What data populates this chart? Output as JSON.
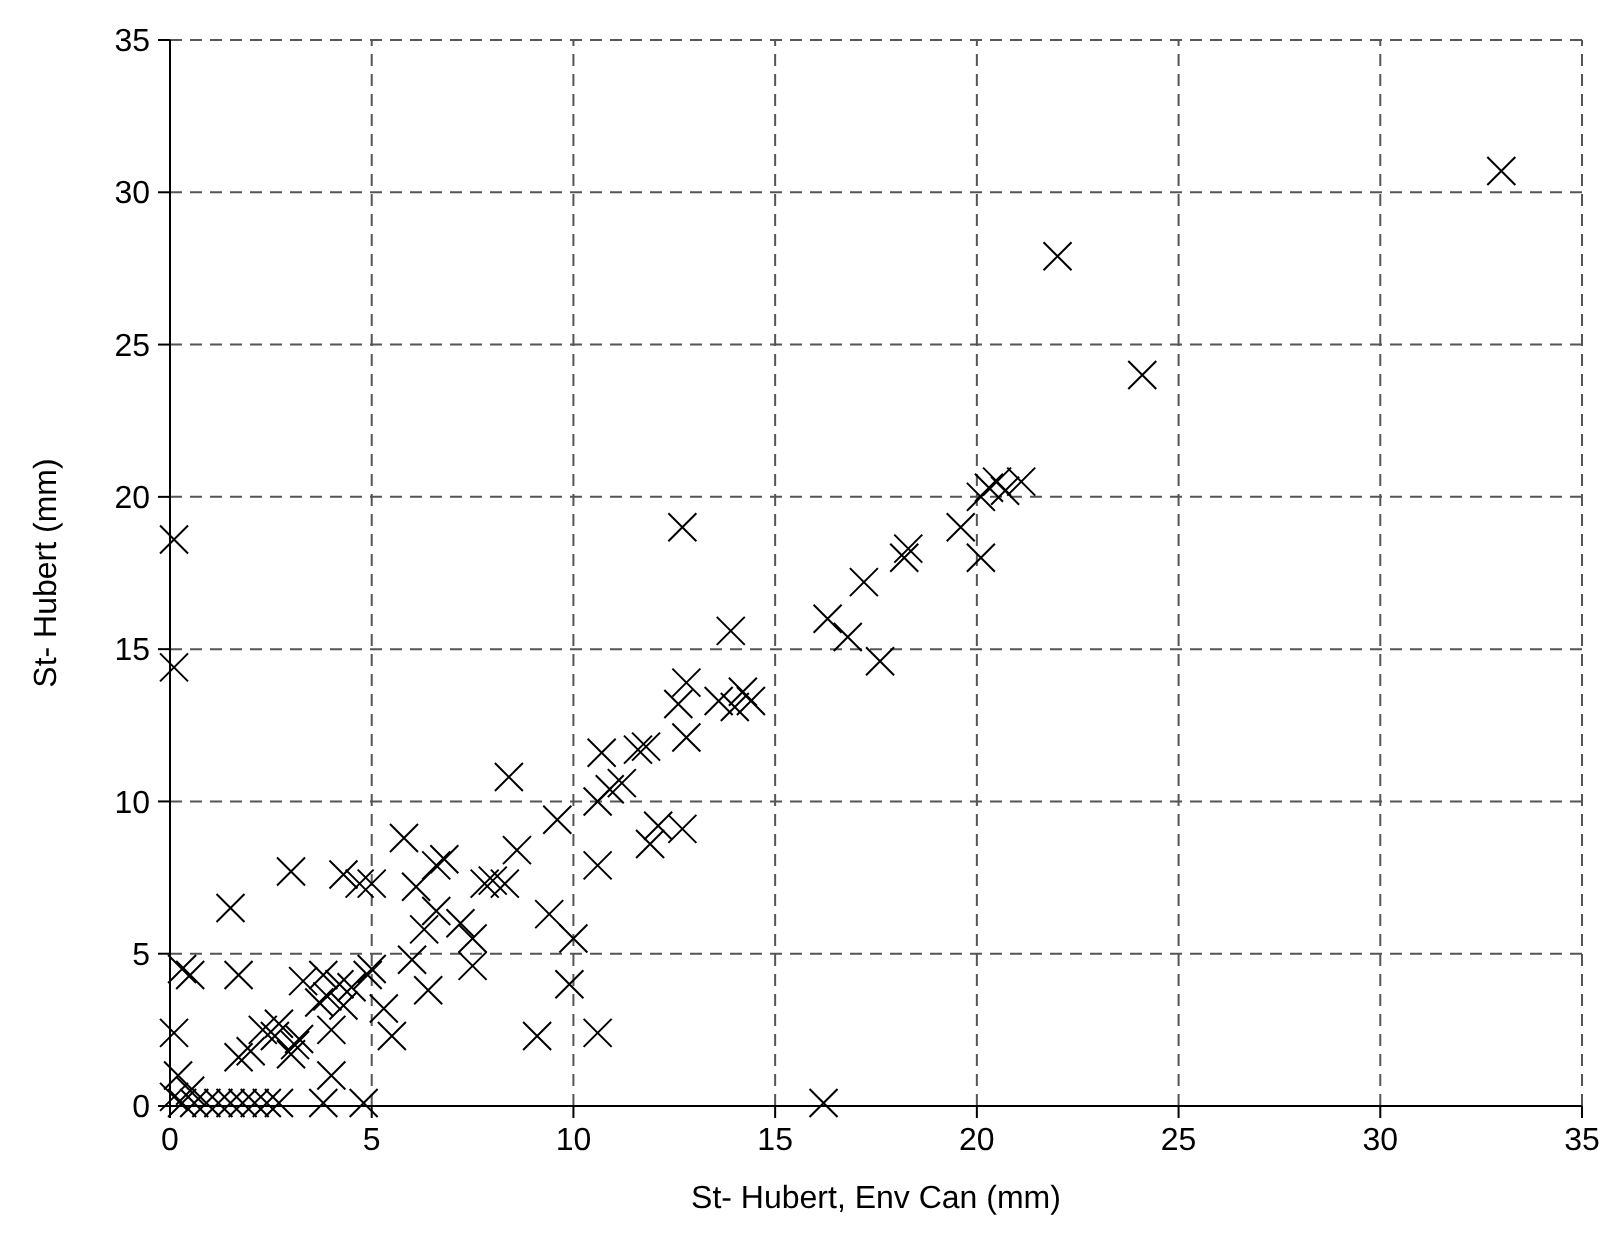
{
  "chart_data": {
    "type": "scatter",
    "xlabel": "St- Hubert, Env Can (mm)",
    "ylabel": "St- Hubert (mm)",
    "xlim": [
      0,
      35
    ],
    "ylim": [
      0,
      35
    ],
    "xticks": [
      0,
      5,
      10,
      15,
      20,
      25,
      30,
      35
    ],
    "yticks": [
      0,
      5,
      10,
      15,
      20,
      25,
      30,
      35
    ],
    "grid": true,
    "marker": "cross",
    "series": [
      {
        "color": "#000000",
        "x": [
          33.0,
          22.0,
          24.1,
          20.3,
          20.5,
          21.1,
          20.1,
          20.7,
          19.6,
          20.1,
          18.3,
          18.2,
          17.2,
          16.3,
          16.8,
          17.6,
          12.7,
          13.9,
          14.4,
          14.2,
          14.0,
          13.6,
          12.8,
          12.6,
          12.8,
          12.7,
          11.8,
          11.6,
          11.9,
          12.1,
          11.2,
          10.6,
          10.9,
          10.7,
          10.6,
          9.6,
          10.0,
          9.9,
          10.6,
          9.1,
          9.4,
          8.4,
          8.3,
          8.6,
          8.0,
          7.8,
          7.2,
          7.5,
          7.5,
          6.8,
          6.6,
          5.8,
          6.1,
          6.6,
          6.3,
          6.0,
          6.4,
          5.5,
          5.3,
          5.0,
          4.7,
          4.3,
          3.0,
          1.5,
          5.0,
          4.9,
          4.5,
          4.2,
          3.9,
          4.3,
          3.8,
          3.3,
          3.7,
          3.2,
          3.0,
          3.1,
          2.6,
          2.3,
          1.7,
          2.0,
          2.7,
          4.0,
          4.0,
          3.8,
          4.8,
          1.7,
          0.5,
          0.3,
          0.1,
          0.1,
          0.1,
          0.2,
          0.5,
          16.2,
          0.3,
          0.6,
          0.9,
          1.2,
          1.5,
          1.8,
          2.1,
          2.4,
          2.7,
          0.1
        ],
        "values": [
          30.7,
          27.9,
          24.0,
          20.3,
          20.5,
          20.5,
          20.0,
          20.2,
          19.0,
          18.0,
          18.3,
          18.0,
          17.2,
          16.0,
          15.4,
          14.6,
          19.0,
          15.6,
          13.3,
          13.6,
          13.1,
          13.3,
          13.9,
          13.2,
          12.1,
          9.1,
          11.8,
          11.7,
          8.6,
          9.2,
          10.6,
          10.0,
          10.4,
          11.6,
          7.9,
          9.4,
          5.5,
          4.0,
          2.4,
          2.3,
          6.3,
          10.8,
          7.3,
          8.4,
          7.4,
          7.3,
          6.0,
          5.5,
          4.6,
          8.1,
          7.9,
          8.8,
          7.2,
          6.4,
          5.8,
          4.8,
          3.8,
          2.3,
          3.2,
          7.3,
          7.3,
          7.6,
          7.7,
          6.5,
          4.5,
          4.3,
          3.9,
          4.0,
          3.6,
          3.3,
          4.3,
          4.1,
          3.4,
          2.2,
          1.7,
          2.0,
          2.3,
          2.5,
          1.6,
          1.8,
          2.7,
          1.0,
          2.5,
          0.1,
          0.1,
          4.3,
          4.3,
          4.5,
          18.6,
          14.4,
          2.4,
          1.0,
          0.5,
          0.1,
          0.1,
          0.1,
          0.1,
          0.1,
          0.1,
          0.1,
          0.1,
          0.1,
          0.1,
          0.3
        ]
      }
    ]
  }
}
